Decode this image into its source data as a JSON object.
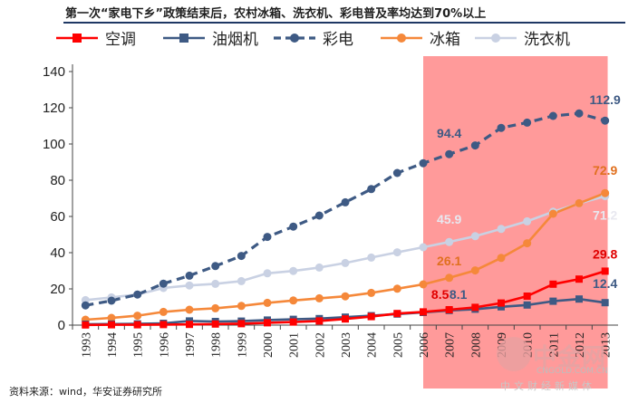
{
  "header": {
    "title": "第一次“家电下乡”政策结束后，农村冰箱、洗衣机、彩电普及率均达到70%以上"
  },
  "footer": {
    "source_label": "资料来源：",
    "source_text": "wind，华安证券研究所"
  },
  "watermark": {
    "brand": "中金网",
    "domain": "CNGOLD.COM.CN",
    "tagline": "中文财经新媒体"
  },
  "colors": {
    "highlight": "#ff9a9a",
    "kongtiao": "#ff0000",
    "youyanji": "#3e5a84",
    "caidian": "#3e5a84",
    "bingxiang": "#f5883a",
    "xiyiji": "#c9d1e3"
  },
  "chart_data": {
    "type": "line",
    "title": "",
    "xlabel": "",
    "ylabel": "",
    "ylim": [
      0,
      140
    ],
    "yticks": [
      0,
      20,
      40,
      60,
      80,
      100,
      120,
      140
    ],
    "grid": false,
    "legend_position": "top",
    "highlight_range": [
      "2007",
      "2013"
    ],
    "categories": [
      "1993",
      "1994",
      "1995",
      "1996",
      "1997",
      "1998",
      "1999",
      "2000",
      "2001",
      "2002",
      "2003",
      "2004",
      "2005",
      "2006",
      "2007",
      "2008",
      "2009",
      "2010",
      "2011",
      "2012",
      "2013"
    ],
    "series": [
      {
        "name": "空调",
        "color": "#ff0000",
        "line_style": "solid",
        "marker": "square",
        "values": [
          0.1,
          0.2,
          0.2,
          0.3,
          0.4,
          0.6,
          0.8,
          1.3,
          1.7,
          2.3,
          3.4,
          4.7,
          6.4,
          7.3,
          8.5,
          9.8,
          12.2,
          16.0,
          22.6,
          25.4,
          29.8
        ],
        "labels": {
          "2007": "8.5",
          "2013": "29.8"
        }
      },
      {
        "name": "油烟机",
        "color": "#3e5a84",
        "line_style": "solid",
        "marker": "square",
        "values": [
          0.5,
          0.6,
          0.7,
          1.0,
          2.3,
          2.0,
          2.2,
          2.8,
          3.2,
          3.6,
          4.4,
          5.2,
          6.1,
          7.0,
          8.1,
          8.8,
          10.1,
          11.1,
          13.2,
          14.4,
          12.4
        ],
        "labels": {
          "2007": "8.1",
          "2013": "12.4"
        }
      },
      {
        "name": "彩电",
        "color": "#3e5a84",
        "line_style": "dashed",
        "marker": "circle",
        "values": [
          10.9,
          13.5,
          16.9,
          22.9,
          27.3,
          32.6,
          38.2,
          48.7,
          54.4,
          60.5,
          67.8,
          75.1,
          84.0,
          89.4,
          94.4,
          99.2,
          108.9,
          111.8,
          115.5,
          116.9,
          112.9
        ],
        "labels": {
          "2007": "94.4",
          "2013": "112.9"
        }
      },
      {
        "name": "冰箱",
        "color": "#f5883a",
        "line_style": "solid",
        "marker": "circle",
        "values": [
          3.0,
          4.0,
          5.2,
          7.3,
          8.5,
          9.3,
          10.6,
          12.3,
          13.6,
          14.8,
          15.9,
          17.8,
          20.1,
          22.5,
          26.1,
          30.2,
          37.1,
          45.2,
          61.5,
          67.3,
          72.9
        ],
        "labels": {
          "2007": "26.1",
          "2013": "72.9"
        }
      },
      {
        "name": "洗衣机",
        "color": "#c9d1e3",
        "line_style": "solid",
        "marker": "circle",
        "values": [
          13.8,
          15.3,
          16.9,
          20.5,
          21.9,
          22.8,
          24.3,
          28.6,
          29.9,
          31.8,
          34.3,
          37.3,
          40.2,
          43.0,
          45.9,
          49.1,
          53.1,
          57.3,
          62.6,
          67.2,
          71.2
        ],
        "labels": {
          "2007": "45.9",
          "2013": "71.2"
        }
      }
    ]
  }
}
